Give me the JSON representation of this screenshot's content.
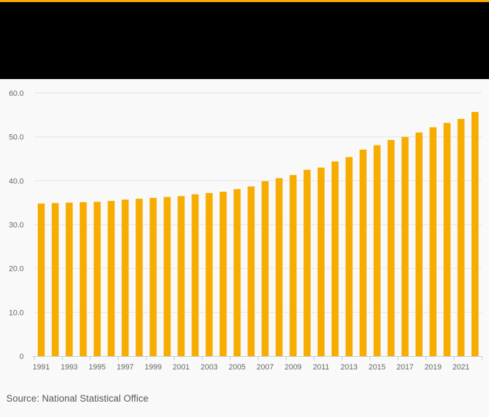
{
  "colors": {
    "accent": "#f7ac00",
    "header_bg": "#000000",
    "bar": "#f7ac00",
    "page_bg": "#f9f9f9",
    "grid": "#e4e4e4",
    "axis_text": "#666666"
  },
  "source": "Source: National Statistical Office",
  "chart_data": {
    "type": "bar",
    "title": "",
    "xlabel": "",
    "ylabel": "",
    "ylim": [
      0,
      60
    ],
    "yticks": [
      0,
      10,
      20,
      30,
      40,
      50,
      60
    ],
    "ytick_labels": [
      "0",
      "10.0",
      "20.0",
      "30.0",
      "40.0",
      "50.0",
      "60.0"
    ],
    "categories": [
      "1991",
      "1992",
      "1993",
      "1994",
      "1995",
      "1996",
      "1997",
      "1998",
      "1999",
      "2000",
      "2001",
      "2002",
      "2003",
      "2004",
      "2005",
      "2006",
      "2007",
      "2008",
      "2009",
      "2010",
      "2011",
      "2012",
      "2013",
      "2014",
      "2015",
      "2016",
      "2017",
      "2018",
      "2019",
      "2020",
      "2021",
      "2022"
    ],
    "xtick_labels": [
      "1991",
      "1993",
      "1995",
      "1997",
      "1999",
      "2001",
      "2003",
      "2005",
      "2007",
      "2009",
      "2011",
      "2013",
      "2015",
      "2017",
      "2019",
      "2021"
    ],
    "values": [
      34.8,
      34.9,
      35.0,
      35.1,
      35.2,
      35.4,
      35.7,
      35.9,
      36.1,
      36.3,
      36.5,
      36.9,
      37.2,
      37.5,
      38.1,
      38.7,
      39.9,
      40.6,
      41.3,
      42.5,
      43.0,
      44.4,
      45.4,
      47.1,
      48.1,
      49.3,
      50.0,
      51.0,
      52.2,
      53.2,
      54.1,
      55.7
    ]
  }
}
